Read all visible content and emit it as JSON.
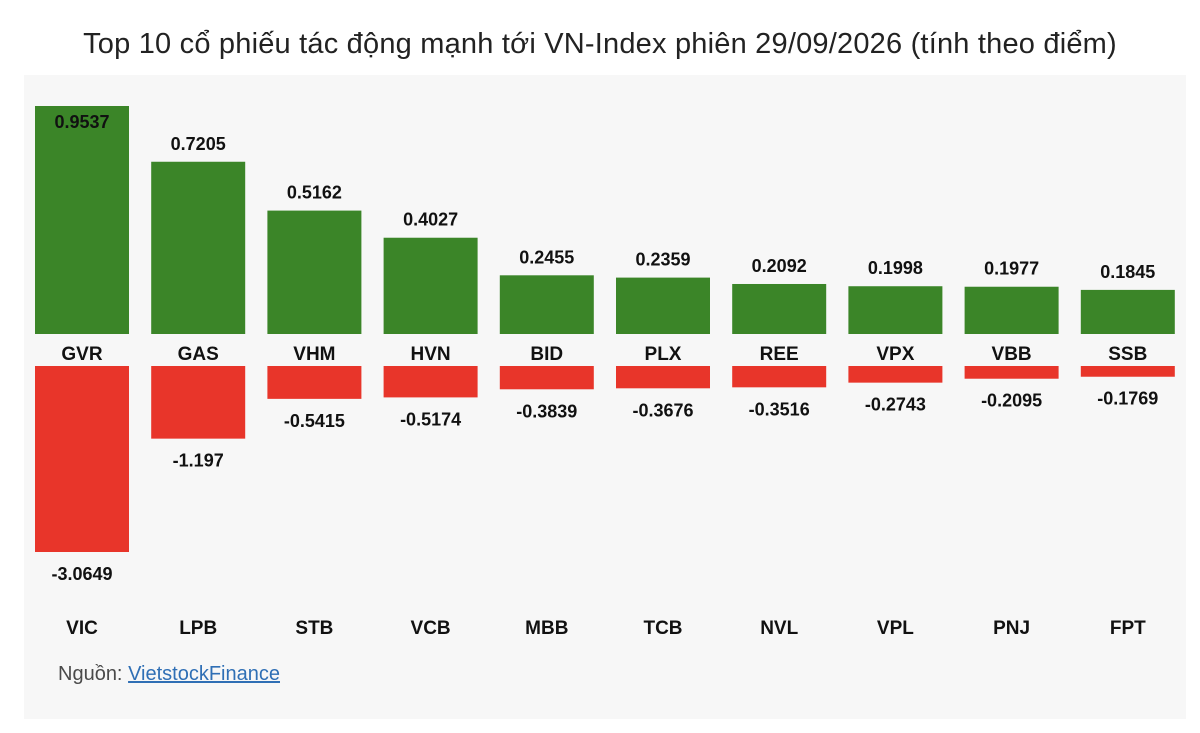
{
  "title": "Top 10 cổ phiếu tác động mạnh tới VN-Index phiên 29/09/2026 (tính theo điểm)",
  "source": {
    "label": "Nguồn:",
    "link_text": "VietstockFinance"
  },
  "colors": {
    "positive": "#3b8528",
    "negative": "#e8352a",
    "background": "#f7f7f7"
  },
  "chart_data": [
    {
      "type": "bar",
      "title": "",
      "categories": [
        "GVR",
        "GAS",
        "VHM",
        "HVN",
        "BID",
        "PLX",
        "REE",
        "VPX",
        "VBB",
        "SSB"
      ],
      "values": [
        0.9537,
        0.7205,
        0.5162,
        0.4027,
        0.2455,
        0.2359,
        0.2092,
        0.1998,
        0.1977,
        0.1845
      ],
      "value_labels": [
        "0.9537",
        "0.7205",
        "0.5162",
        "0.4027",
        "0.2455",
        "0.2359",
        "0.2092",
        "0.1998",
        "0.1977",
        "0.1845"
      ],
      "color": "#3b8528",
      "xlabel": "",
      "ylabel": "",
      "ylim": [
        0,
        0.9537
      ],
      "grid": false
    },
    {
      "type": "bar",
      "title": "",
      "categories": [
        "VIC",
        "LPB",
        "STB",
        "VCB",
        "MBB",
        "TCB",
        "NVL",
        "VPL",
        "PNJ",
        "FPT"
      ],
      "values": [
        -3.0649,
        -1.197,
        -0.5415,
        -0.5174,
        -0.3839,
        -0.3676,
        -0.3516,
        -0.2743,
        -0.2095,
        -0.1769
      ],
      "value_labels": [
        "-3.0649",
        "-1.197",
        "-0.5415",
        "-0.5174",
        "-0.3839",
        "-0.3676",
        "-0.3516",
        "-0.2743",
        "-0.2095",
        "-0.1769"
      ],
      "color": "#e8352a",
      "xlabel": "",
      "ylabel": "",
      "ylim": [
        -3.0649,
        0
      ],
      "grid": false
    }
  ]
}
